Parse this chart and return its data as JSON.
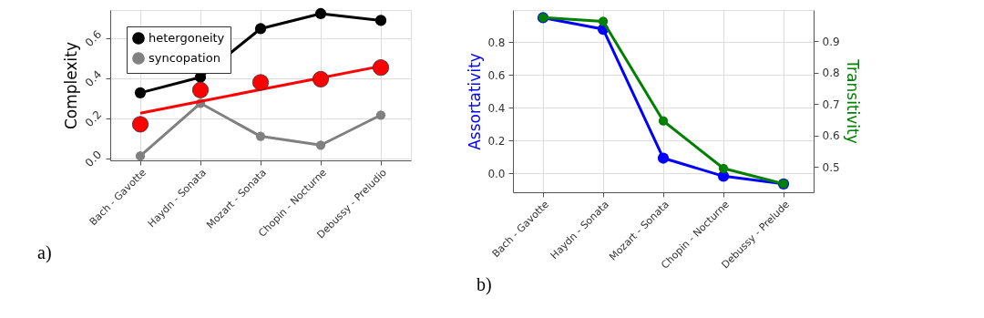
{
  "chart_data": [
    {
      "type": "line",
      "ylabel": "Complexity",
      "categories": [
        "Bach - Gavotte",
        "Haydn - Sonata",
        "Mozart - Sonata",
        "Chopin - Nocturne",
        "Debussy - Preludio"
      ],
      "ylim": [
        -0.01,
        0.74
      ],
      "yticks": [
        {
          "value": 0,
          "label": "0.0"
        },
        0.2,
        0.4,
        0.6
      ],
      "grid": true,
      "legend": "top left",
      "marker": "circle",
      "line_style": "solid",
      "series": [
        {
          "name": "hetergoneity",
          "color": "#000000",
          "values": [
            0.327,
            0.405,
            0.647,
            0.722,
            0.688
          ]
        },
        {
          "name": "syncopation",
          "color": "#808080",
          "values": [
            0.012,
            0.275,
            0.11,
            0.066,
            0.216
          ]
        },
        {
          "type": "line",
          "marker": "none",
          "color": "#ff0000",
          "values": [
            0.225,
            0.284,
            0.343,
            0.401,
            0.46
          ]
        },
        {
          "type": "scatter",
          "color": "#ff0000",
          "values": [
            0.17,
            0.341,
            0.379,
            0.395,
            0.453
          ]
        }
      ],
      "annotations": [
        "a)"
      ]
    },
    {
      "type": "line",
      "ylabel": "Assortativity",
      "y2label": "Transitivity",
      "categories": [
        "Bach - Gavotte",
        "Haydn - Sonata",
        "Mozart - Sonata",
        "Chopin - Nocturne",
        "Debussy - Prelude"
      ],
      "ylim": [
        -0.115,
        0.995
      ],
      "yticks": [
        {
          "value": 0,
          "label": "0.0"
        },
        0.2,
        0.4,
        0.6,
        0.8
      ],
      "y2lim": [
        0.42,
        1.0
      ],
      "y2ticks": [
        0.5,
        0.6,
        0.7,
        0.8,
        0.9
      ],
      "grid": true,
      "marker": "circle",
      "line_style": "solid",
      "series": [
        {
          "color": "#0000ff",
          "values": [
            0.948,
            0.878,
            0.093,
            -0.017,
            -0.064
          ]
        },
        {
          "color": "#008000",
          "axis": "y2",
          "values": [
            0.976,
            0.964,
            0.647,
            0.496,
            0.447
          ]
        }
      ],
      "annotations": [
        "b)"
      ]
    }
  ]
}
